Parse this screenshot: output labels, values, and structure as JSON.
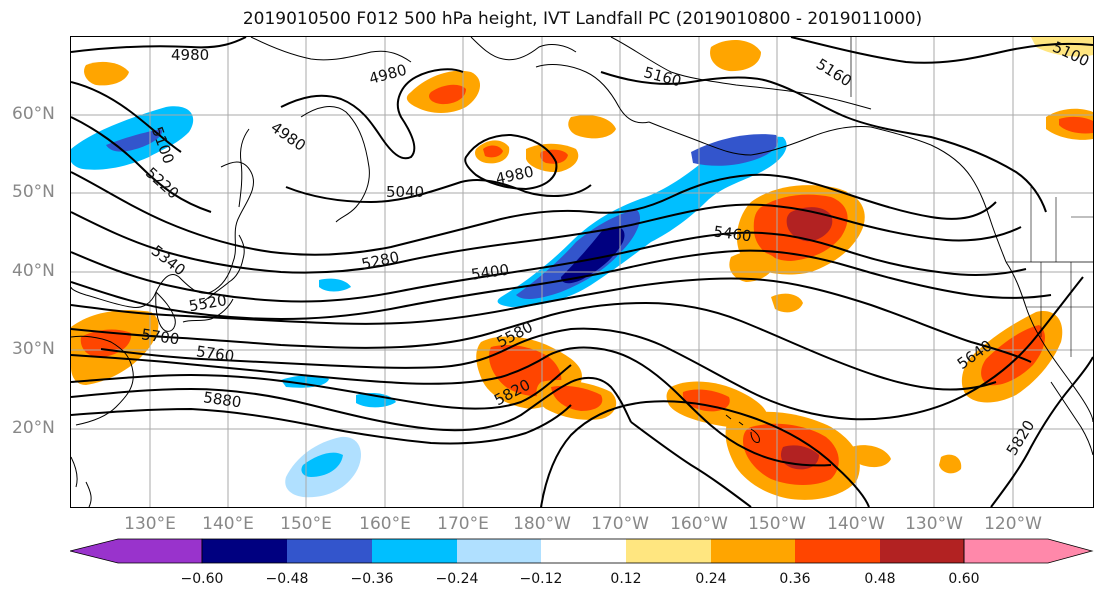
{
  "title": "2019010500 F012 500 hPa height, IVT Landfall PC (2019010800 - 2019011000)",
  "lat_labels": [
    "60°N",
    "50°N",
    "40°N",
    "30°N",
    "20°N"
  ],
  "lon_labels": [
    "130°E",
    "140°E",
    "150°E",
    "160°E",
    "170°E",
    "180°W",
    "170°W",
    "160°W",
    "150°W",
    "140°W",
    "130°W",
    "120°W"
  ],
  "contour_labels": [
    "4980",
    "4980",
    "4980",
    "4980",
    "5100",
    "5100",
    "5160",
    "5160",
    "5220",
    "5040",
    "5280",
    "5340",
    "5400",
    "5460",
    "5520",
    "5580",
    "5640",
    "5700",
    "5760",
    "5820",
    "5820",
    "5880"
  ],
  "colorbar": {
    "tick_labels": [
      "−0.60",
      "−0.48",
      "−0.36",
      "−0.24",
      "−0.12",
      "0.12",
      "0.24",
      "0.36",
      "0.48",
      "0.60"
    ],
    "colors": [
      "#9933cc",
      "#000080",
      "#3355cc",
      "#00bfff",
      "#b0e0ff",
      "#ffffff",
      "#ffe680",
      "#ffa500",
      "#ff4500",
      "#b22222",
      "#ff88aa"
    ]
  },
  "colors": {
    "coast": "#000000",
    "grid": "#aaaaaa",
    "contour": "#000000"
  }
}
